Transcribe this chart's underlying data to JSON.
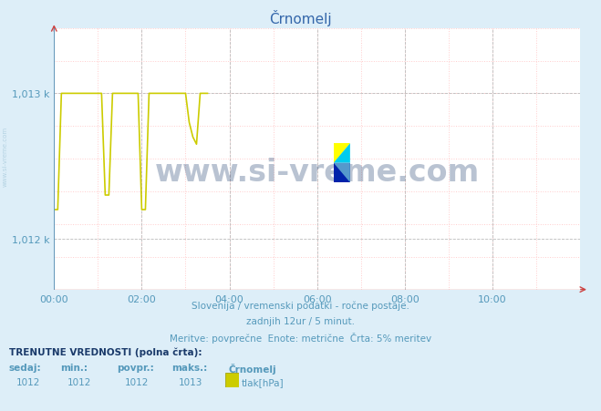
{
  "title": "Črnomelj",
  "background_color": "#ddeef8",
  "plot_bg_color": "#ffffff",
  "grid_major_color": "#bbbbbb",
  "grid_minor_color": "#ffcccc",
  "line_color": "#cccc00",
  "axis_color": "#5599bb",
  "title_color": "#3366aa",
  "ylim_min": 1011.65,
  "ylim_max": 1013.45,
  "ytick_vals": [
    1012.0,
    1013.0
  ],
  "ytick_labels": [
    "1,012 k",
    "1,013 k"
  ],
  "xlim_min": 0,
  "xlim_max": 144,
  "xtick_positions": [
    0,
    24,
    48,
    72,
    96,
    120
  ],
  "xtick_labels": [
    "00:00",
    "02:00",
    "04:00",
    "06:00",
    "08:00",
    "10:00"
  ],
  "subtitle1": "Slovenija / vremenski podatki - ročne postaje.",
  "subtitle2": "zadnjih 12ur / 5 minut.",
  "subtitle3": "Meritve: povprečne  Enote: metrične  Črta: 5% meritev",
  "footer_bold": "TRENUTNE VREDNOSTI (polna črta):",
  "footer_cols": [
    "sedaj:",
    "min.:",
    "povpr.:",
    "maks.:",
    "Črnomelj"
  ],
  "footer_vals": [
    "1012",
    "1012",
    "1012",
    "1013",
    "tlak[hPa]"
  ],
  "watermark": "www.si-vreme.com",
  "watermark_color": "#1a3a6a",
  "watermark_alpha": 0.3,
  "legend_color_yellow": "#cccc00",
  "left_axis_color": "#6699bb",
  "bottom_axis_color": "#cc4444",
  "sivreme_color": "#aaccdd"
}
